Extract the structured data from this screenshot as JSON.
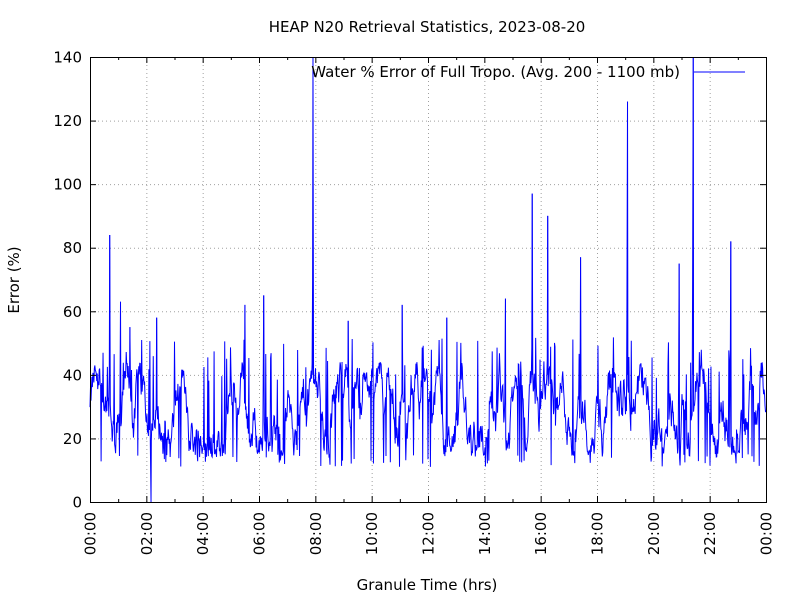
{
  "chart_data": {
    "type": "line",
    "title": "HEAP N20 Retrieval Statistics, 2023-08-20",
    "xlabel": "Granule Time (hrs)",
    "ylabel": "Error (%)",
    "xlim": [
      "00:00",
      "24:00"
    ],
    "ylim": [
      0,
      140
    ],
    "x_ticks": [
      "00:00",
      "02:00",
      "04:00",
      "06:00",
      "08:00",
      "10:00",
      "12:00",
      "14:00",
      "16:00",
      "18:00",
      "20:00",
      "22:00",
      "00:00"
    ],
    "y_ticks": [
      "0",
      "20",
      "40",
      "60",
      "80",
      "100",
      "120",
      "140"
    ],
    "grid": true,
    "legend_position": "top-right",
    "series": [
      {
        "name": "Water % Error of Full Tropo. (Avg. 200 - 1100 mb)",
        "color": "#0000ff",
        "baseline_band": [
          18,
          38
        ],
        "spikes": [
          {
            "x": "00:42",
            "y": 84
          },
          {
            "x": "01:05",
            "y": 63
          },
          {
            "x": "01:25",
            "y": 55
          },
          {
            "x": "02:10",
            "y": 0
          },
          {
            "x": "02:22",
            "y": 58
          },
          {
            "x": "05:30",
            "y": 62
          },
          {
            "x": "06:10",
            "y": 65
          },
          {
            "x": "07:55",
            "y": 140
          },
          {
            "x": "09:10",
            "y": 57
          },
          {
            "x": "11:05",
            "y": 62
          },
          {
            "x": "12:40",
            "y": 58
          },
          {
            "x": "14:45",
            "y": 64
          },
          {
            "x": "15:42",
            "y": 97
          },
          {
            "x": "16:15",
            "y": 90
          },
          {
            "x": "17:25",
            "y": 77
          },
          {
            "x": "19:05",
            "y": 126
          },
          {
            "x": "20:55",
            "y": 75
          },
          {
            "x": "21:25",
            "y": 140
          },
          {
            "x": "22:45",
            "y": 82
          }
        ]
      }
    ]
  }
}
